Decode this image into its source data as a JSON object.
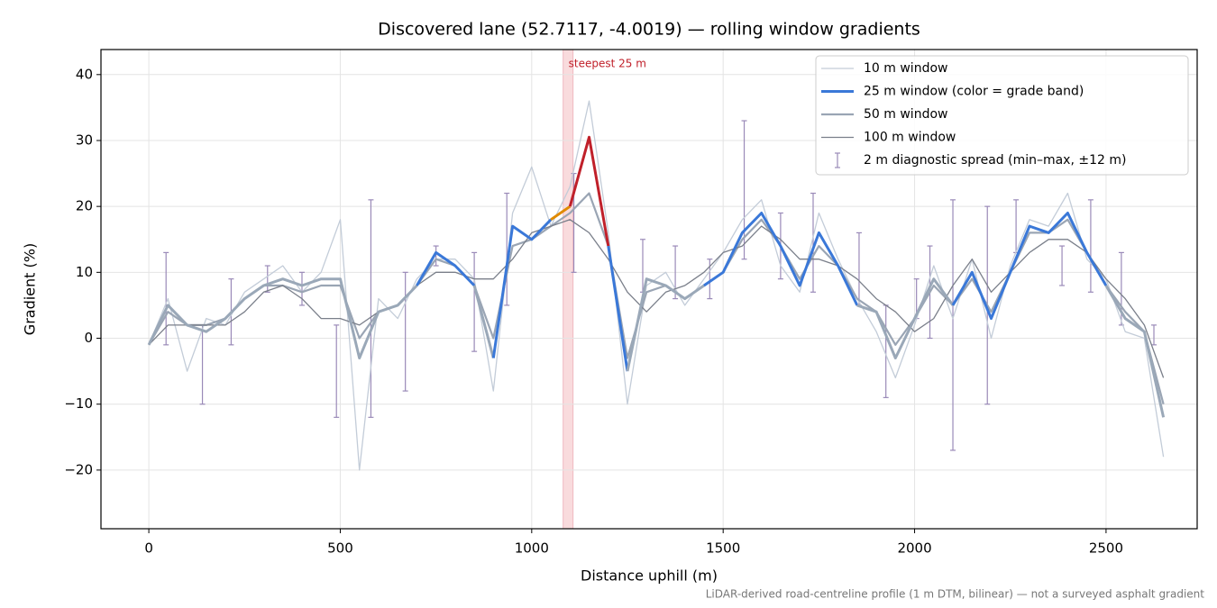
{
  "chart_data": {
    "type": "line",
    "title": "Discovered lane (52.7117, -4.0019) — rolling window gradients",
    "x_label": "Distance uphill (m)",
    "y_label": "Gradient (%)",
    "footnote": "LiDAR-derived road-centreline profile (1 m DTM, bilinear) — not a surveyed asphalt gradient",
    "xlim": [
      -125,
      2738
    ],
    "ylim": [
      -28.9,
      43.8
    ],
    "xticks": [
      0,
      500,
      1000,
      1500,
      2000,
      2500
    ],
    "yticks": [
      {
        "value": -20,
        "label": "−20"
      },
      {
        "value": -10,
        "label": "−10"
      },
      0,
      10,
      20,
      30,
      40
    ],
    "grid": true,
    "legend": "upper right",
    "highlight": {
      "xlim": [
        1082,
        1108
      ],
      "label": "steepest 25 m",
      "color": "#f4b8bc"
    },
    "x": [
      0,
      50,
      100,
      150,
      200,
      250,
      300,
      350,
      400,
      450,
      500,
      550,
      600,
      650,
      700,
      750,
      800,
      850,
      900,
      950,
      1000,
      1050,
      1100,
      1150,
      1200,
      1250,
      1300,
      1350,
      1400,
      1450,
      1500,
      1550,
      1600,
      1650,
      1700,
      1750,
      1800,
      1850,
      1900,
      1950,
      2000,
      2050,
      2100,
      2150,
      2200,
      2250,
      2300,
      2350,
      2400,
      2450,
      2500,
      2550,
      2600,
      2650
    ],
    "series": [
      {
        "name": "10 m window",
        "color": "#c3ccd8",
        "width": 1.3,
        "values": [
          -1,
          6,
          -5,
          3,
          2,
          7,
          9,
          11,
          7,
          10,
          18,
          -20,
          6,
          3,
          9,
          12,
          12,
          9,
          -8,
          19,
          26,
          17,
          23,
          36,
          16,
          -10,
          8,
          10,
          5,
          9,
          13,
          18,
          21,
          11,
          7,
          19,
          12,
          6,
          1,
          -6,
          2,
          11,
          3,
          12,
          0,
          11,
          18,
          17,
          22,
          12,
          9,
          1,
          0,
          -18
        ]
      },
      {
        "name": "25 m window (color = grade band)",
        "color": "#3a78d8",
        "width": 3,
        "low_color": "#9aa8b8",
        "bands": [
          {
            "from": 10,
            "color": "#3a78d8"
          },
          {
            "from": 20,
            "color": "#e08a00"
          },
          {
            "from": 25,
            "color": "#c0202a"
          }
        ],
        "values": [
          -1,
          5,
          2,
          1,
          3,
          6,
          8,
          9,
          8,
          9,
          9,
          -3,
          4,
          5,
          8,
          13,
          11,
          8,
          -3,
          17,
          15,
          18,
          20,
          30.5,
          14,
          -5,
          9,
          8,
          6,
          8,
          10,
          16,
          19,
          14,
          8,
          16,
          11,
          5,
          4,
          -3,
          3,
          9,
          5,
          10,
          3,
          10,
          17,
          16,
          19,
          13,
          8,
          3,
          1,
          -12
        ]
      },
      {
        "name": "50 m window",
        "color": "#9aa5b4",
        "width": 2.2,
        "values": [
          -1,
          4,
          2,
          2,
          3,
          6,
          8,
          8,
          7,
          8,
          8,
          0,
          4,
          5,
          8,
          12,
          11,
          8,
          0,
          14,
          15,
          17,
          19,
          22,
          14,
          -3,
          7,
          8,
          6,
          8,
          10,
          15,
          18,
          14,
          9,
          14,
          11,
          6,
          4,
          -1,
          3,
          8,
          5,
          9,
          4,
          10,
          16,
          16,
          18,
          13,
          8,
          4,
          1,
          -10
        ]
      },
      {
        "name": "100 m window",
        "color": "#7a7f8a",
        "width": 1.3,
        "values": [
          -1,
          2,
          2,
          2,
          2,
          4,
          7,
          8,
          6,
          3,
          3,
          2,
          4,
          5,
          8,
          10,
          10,
          9,
          9,
          12,
          16,
          17,
          18,
          16,
          12,
          7,
          4,
          7,
          8,
          10,
          13,
          14,
          17,
          15,
          12,
          12,
          11,
          9,
          6,
          4,
          1,
          3,
          8,
          12,
          7,
          10,
          13,
          15,
          15,
          13,
          9,
          6,
          2,
          -6
        ]
      }
    ],
    "error_bars": {
      "name": "2 m diagnostic spread (min–max, ±12 m)",
      "color": "#9a8ab8",
      "x": [
        45,
        140,
        215,
        310,
        400,
        490,
        580,
        670,
        750,
        850,
        935,
        1110,
        1290,
        1375,
        1465,
        1555,
        1650,
        1735,
        1855,
        1925,
        2005,
        2040,
        2100,
        2190,
        2265,
        2385,
        2460,
        2540,
        2625
      ],
      "low": [
        -1,
        -10,
        -1,
        7,
        5,
        -12,
        -12,
        -8,
        11,
        -2,
        5,
        10,
        7,
        6,
        6,
        12,
        9,
        7,
        5,
        -9,
        3,
        0,
        -17,
        -10,
        13,
        8,
        7,
        2,
        -1
      ],
      "high": [
        13,
        2,
        9,
        11,
        10,
        2,
        21,
        10,
        14,
        13,
        22,
        25,
        15,
        14,
        12,
        33,
        19,
        22,
        16,
        5,
        9,
        14,
        21,
        20,
        21,
        14,
        21,
        13,
        2
      ]
    }
  }
}
